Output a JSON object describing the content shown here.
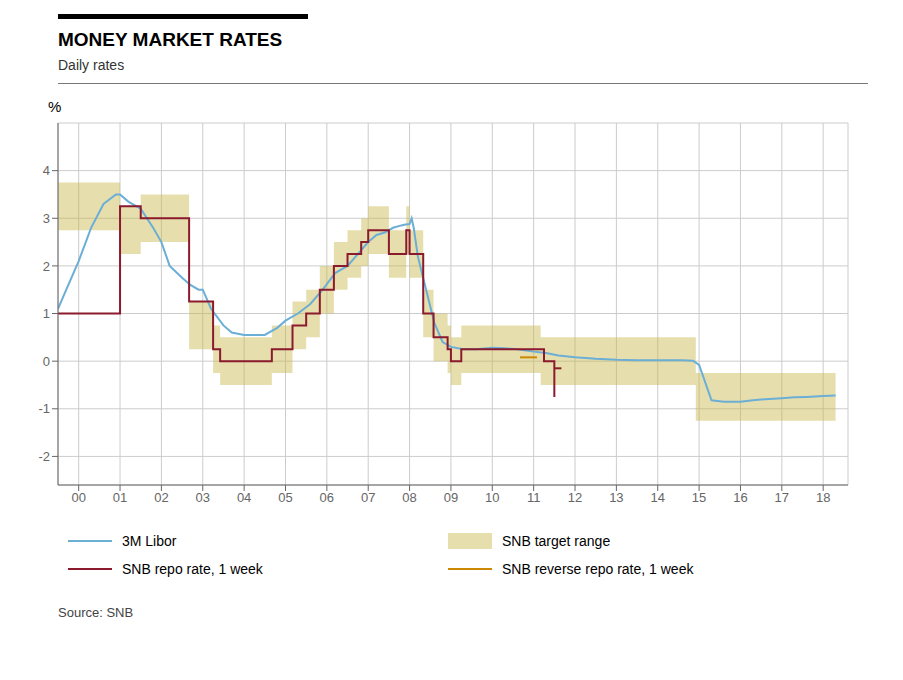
{
  "chart_data": {
    "type": "line",
    "title": "MONEY MARKET RATES",
    "subtitle": "Daily rates",
    "ylabel": "%",
    "source": "Source: SNB",
    "xlim": [
      1999.5,
      2018.6
    ],
    "ylim": [
      -2.6,
      5.0
    ],
    "xticks": [
      {
        "value": 2000,
        "label": "00"
      },
      {
        "value": 2001,
        "label": "01"
      },
      {
        "value": 2002,
        "label": "02"
      },
      {
        "value": 2003,
        "label": "03"
      },
      {
        "value": 2004,
        "label": "04"
      },
      {
        "value": 2005,
        "label": "05"
      },
      {
        "value": 2006,
        "label": "06"
      },
      {
        "value": 2007,
        "label": "07"
      },
      {
        "value": 2008,
        "label": "08"
      },
      {
        "value": 2009,
        "label": "09"
      },
      {
        "value": 2010,
        "label": "10"
      },
      {
        "value": 2011,
        "label": "11"
      },
      {
        "value": 2012,
        "label": "12"
      },
      {
        "value": 2013,
        "label": "13"
      },
      {
        "value": 2014,
        "label": "14"
      },
      {
        "value": 2015,
        "label": "15"
      },
      {
        "value": 2016,
        "label": "16"
      },
      {
        "value": 2017,
        "label": "17"
      },
      {
        "value": 2018,
        "label": "18"
      }
    ],
    "yticks": [
      -2,
      -1,
      0,
      1,
      2,
      3,
      4
    ],
    "grid": true,
    "series": [
      {
        "name": "3M Libor",
        "type": "line",
        "color": "#6BAED6",
        "x": [
          1999.5,
          1999.7,
          2000.0,
          2000.3,
          2000.6,
          2000.9,
          2001.0,
          2001.2,
          2001.5,
          2001.8,
          2002.0,
          2002.2,
          2002.5,
          2002.7,
          2002.9,
          2003.0,
          2003.2,
          2003.5,
          2003.7,
          2004.0,
          2004.2,
          2004.5,
          2004.8,
          2005.0,
          2005.3,
          2005.6,
          2005.9,
          2006.2,
          2006.5,
          2006.8,
          2007.0,
          2007.2,
          2007.4,
          2007.6,
          2007.8,
          2007.9,
          2008.0,
          2008.05,
          2008.1,
          2008.2,
          2008.4,
          2008.6,
          2008.8,
          2009.0,
          2009.3,
          2009.6,
          2010.0,
          2010.3,
          2010.6,
          2011.0,
          2011.3,
          2011.6,
          2012.0,
          2012.5,
          2013.0,
          2013.5,
          2014.0,
          2014.3,
          2014.6,
          2014.85,
          2015.0,
          2015.3,
          2015.6,
          2016.0,
          2016.3,
          2016.6,
          2017.0,
          2017.3,
          2017.6,
          2018.0,
          2018.3
        ],
        "values": [
          1.1,
          1.5,
          2.1,
          2.8,
          3.3,
          3.5,
          3.5,
          3.35,
          3.2,
          2.8,
          2.5,
          2.0,
          1.75,
          1.6,
          1.5,
          1.5,
          1.1,
          0.75,
          0.6,
          0.55,
          0.55,
          0.55,
          0.7,
          0.85,
          1.0,
          1.2,
          1.5,
          1.85,
          2.0,
          2.3,
          2.5,
          2.65,
          2.7,
          2.8,
          2.85,
          2.87,
          2.88,
          3.0,
          2.8,
          2.2,
          1.5,
          0.8,
          0.4,
          0.3,
          0.25,
          0.25,
          0.28,
          0.27,
          0.25,
          0.2,
          0.17,
          0.12,
          0.08,
          0.05,
          0.03,
          0.02,
          0.02,
          0.02,
          0.02,
          0.01,
          -0.08,
          -0.82,
          -0.85,
          -0.85,
          -0.82,
          -0.8,
          -0.78,
          -0.76,
          -0.75,
          -0.73,
          -0.72
        ]
      },
      {
        "name": "SNB target range",
        "type": "area",
        "color": "#C8B84A",
        "x": [
          1999.5,
          2001.0,
          2001.0,
          2001.5,
          2001.5,
          2002.67,
          2002.67,
          2003.25,
          2003.25,
          2003.42,
          2003.42,
          2004.67,
          2004.67,
          2005.17,
          2005.17,
          2005.5,
          2005.5,
          2005.83,
          2005.83,
          2006.17,
          2006.17,
          2006.5,
          2006.5,
          2006.83,
          2006.83,
          2007.0,
          2007.0,
          2007.5,
          2007.5,
          2007.92,
          2007.92,
          2008.0,
          2008.0,
          2008.33,
          2008.33,
          2008.58,
          2008.58,
          2008.92,
          2008.92,
          2009.0,
          2009.0,
          2009.25,
          2009.25,
          2011.17,
          2011.17,
          2014.92,
          2014.92,
          2018.3
        ],
        "low": [
          2.75,
          2.75,
          2.25,
          2.25,
          2.5,
          2.5,
          0.25,
          0.25,
          -0.25,
          -0.25,
          -0.5,
          -0.5,
          -0.25,
          -0.25,
          0.25,
          0.25,
          0.5,
          0.5,
          1.0,
          1.0,
          1.5,
          1.5,
          1.75,
          1.75,
          2.0,
          2.0,
          2.25,
          2.25,
          1.75,
          1.75,
          2.25,
          2.25,
          1.75,
          1.75,
          0.5,
          0.5,
          0.0,
          0.0,
          -0.25,
          -0.25,
          -0.5,
          -0.5,
          -0.25,
          -0.25,
          -0.5,
          -0.5,
          -1.25,
          -1.25
        ],
        "high": [
          3.75,
          3.75,
          3.25,
          3.25,
          3.5,
          3.5,
          1.25,
          1.25,
          0.75,
          0.75,
          0.5,
          0.5,
          0.75,
          0.75,
          1.25,
          1.25,
          1.5,
          1.5,
          2.0,
          2.0,
          2.5,
          2.5,
          2.75,
          2.75,
          3.0,
          3.0,
          3.25,
          3.25,
          2.75,
          2.75,
          3.25,
          3.25,
          2.75,
          2.75,
          1.5,
          1.5,
          1.0,
          1.0,
          0.75,
          0.75,
          0.5,
          0.5,
          0.75,
          0.75,
          0.5,
          0.5,
          -0.25,
          -0.25
        ]
      },
      {
        "name": "SNB repo rate, 1 week",
        "type": "line",
        "color": "#8B1A2E",
        "x": [
          1999.5,
          2001.0,
          2001.0,
          2001.5,
          2001.5,
          2002.67,
          2002.67,
          2003.25,
          2003.25,
          2003.42,
          2003.42,
          2004.67,
          2004.67,
          2005.17,
          2005.17,
          2005.5,
          2005.5,
          2005.83,
          2005.83,
          2006.17,
          2006.17,
          2006.5,
          2006.5,
          2006.83,
          2006.83,
          2007.0,
          2007.0,
          2007.5,
          2007.5,
          2007.92,
          2007.92,
          2008.0,
          2008.0,
          2008.33,
          2008.33,
          2008.58,
          2008.58,
          2008.92,
          2008.92,
          2009.0,
          2009.0,
          2009.25,
          2009.25,
          2011.25,
          2011.25,
          2011.5,
          2011.5
        ],
        "values": [
          1.0,
          1.0,
          3.25,
          3.25,
          3.0,
          3.0,
          1.25,
          1.25,
          0.25,
          0.25,
          0.0,
          0.0,
          0.25,
          0.25,
          0.75,
          0.75,
          1.0,
          1.0,
          1.5,
          1.5,
          2.0,
          2.0,
          2.25,
          2.25,
          2.5,
          2.5,
          2.75,
          2.75,
          2.25,
          2.25,
          2.75,
          2.75,
          2.25,
          2.25,
          1.0,
          1.0,
          0.5,
          0.5,
          0.25,
          0.25,
          0.0,
          0.0,
          0.25,
          0.25,
          0.0,
          0.0,
          -0.75
        ]
      },
      {
        "type": "line",
        "color": "#8B1A2E",
        "x": [
          2011.5,
          2011.67
        ],
        "values": [
          -0.15,
          -0.15
        ]
      },
      {
        "name": "SNB reverse repo rate, 1 week",
        "type": "line",
        "color": "#CC8800",
        "x": [
          2010.67,
          2011.08
        ],
        "values": [
          0.08,
          0.08
        ]
      }
    ]
  }
}
